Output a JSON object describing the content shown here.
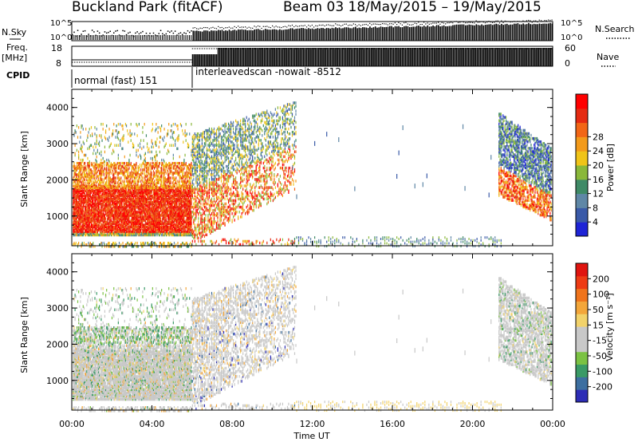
{
  "header": {
    "station": "Buckland Park (fitACF)",
    "beam_range": "Beam 03  18/May/2015 – 19/May/2015"
  },
  "left_labels": {
    "nsky": "N.Sky",
    "freq": "Freq.",
    "freq_unit": "[MHz]",
    "cpid": "CPID"
  },
  "right_labels": {
    "nsearch": "N.Search",
    "nave": "Nave"
  },
  "cpid_segments": [
    {
      "label": "normal (fast) 151"
    },
    {
      "label": "interleavedscan -nowait -8512"
    }
  ],
  "chart_data": [
    {
      "type": "heatmap",
      "name": "power",
      "ylabel": "Slant Range [km]",
      "xlabel": "Time UT",
      "x_ticks": [
        "00:00",
        "04:00",
        "08:00",
        "12:00",
        "16:00",
        "20:00",
        "00:00"
      ],
      "x_range_hours": [
        0,
        24
      ],
      "ylim": [
        180,
        4500
      ],
      "y_ticks": [
        1000,
        2000,
        3000,
        4000
      ],
      "colorbar": {
        "label": "Power [dB]",
        "ticks": [
          "4",
          "8",
          "12",
          "16",
          "20",
          "24",
          "28"
        ],
        "colors": [
          "#1e24d6",
          "#3a5aa8",
          "#5f87a6",
          "#3f8a66",
          "#8ab83a",
          "#f0c418",
          "#f39a1a",
          "#f26616",
          "#e52b12",
          "#ff0000"
        ]
      }
    },
    {
      "type": "heatmap",
      "name": "velocity",
      "ylabel": "Slant Range [km]",
      "xlabel": "Time UT",
      "x_ticks": [
        "00:00",
        "04:00",
        "08:00",
        "12:00",
        "16:00",
        "20:00",
        "00:00"
      ],
      "x_range_hours": [
        0,
        24
      ],
      "ylim": [
        180,
        4500
      ],
      "y_ticks": [
        1000,
        2000,
        3000,
        4000
      ],
      "colorbar": {
        "label": "Velocity [m s⁻¹]",
        "ticks": [
          "200",
          "100",
          "50",
          "15",
          "-15",
          "-50",
          "-100",
          "-200"
        ],
        "colors": [
          "#2d2db6",
          "#3d6fa0",
          "#3a9a66",
          "#7bc243",
          "#c8c8c8",
          "#c8c8c8",
          "#f2d26a",
          "#f3a63a",
          "#f0741c",
          "#ee3b14",
          "#e0140f"
        ]
      }
    },
    {
      "type": "bar",
      "name": "nsky",
      "ytick_labels": [
        "10^5",
        "10^0"
      ]
    },
    {
      "type": "bar",
      "name": "freq",
      "yticks_left": [
        8,
        18
      ],
      "yticks_right": [
        0,
        60
      ]
    }
  ],
  "x_axis_title": "Time UT"
}
